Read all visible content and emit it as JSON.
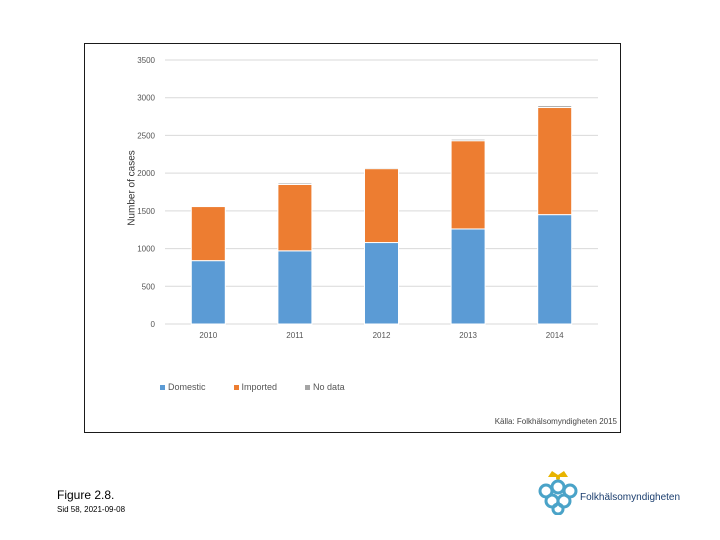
{
  "chart_data": {
    "type": "bar",
    "stacked": true,
    "title": "",
    "xlabel": "",
    "ylabel": "Number of cases",
    "categories": [
      "2010",
      "2011",
      "2012",
      "2013",
      "2014"
    ],
    "series": [
      {
        "name": "Domestic",
        "color": "#5b9bd5",
        "values": [
          840,
          970,
          1080,
          1260,
          1450
        ]
      },
      {
        "name": "Imported",
        "color": "#ed7d31",
        "values": [
          720,
          880,
          980,
          1170,
          1420
        ]
      },
      {
        "name": "No data",
        "color": "#a5a5a5",
        "values": [
          10,
          20,
          15,
          20,
          25
        ]
      }
    ],
    "ylim": [
      0,
      3500
    ],
    "yticks": [
      "0",
      "500",
      "1000",
      "1500",
      "2000",
      "2500",
      "3000",
      "3500"
    ],
    "grid": true,
    "legend_position": "bottom-left"
  },
  "source_text": "Källa: Folkhälsomyndigheten 2015",
  "figure_title": "Figure 2.8.",
  "figure_subtitle": "Sid 58, 2021-09-08",
  "logo_text": "Folkhälsomyndigheten"
}
